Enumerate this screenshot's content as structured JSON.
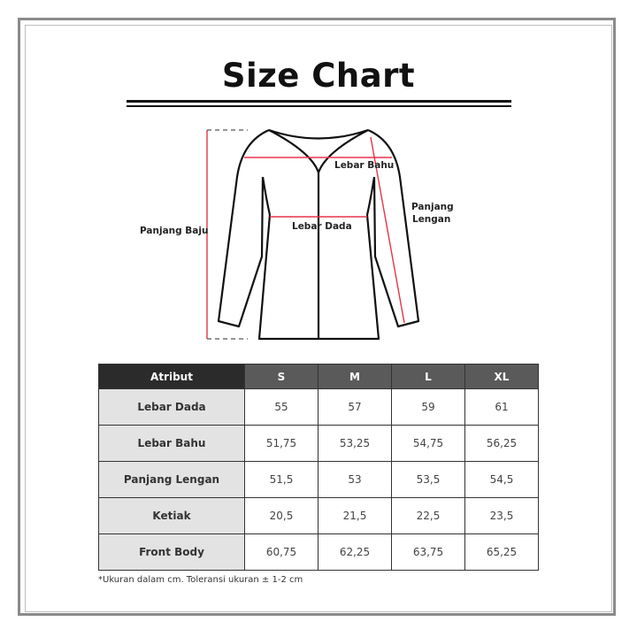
{
  "title": "Size Chart",
  "diagram": {
    "labels": {
      "lebar_bahu": "Lebar Bahu",
      "lebar_dada": "Lebar Dada",
      "panjang_baju": "Panjang Baju",
      "panjang_lengan_1": "Panjang",
      "panjang_lengan_2": "Lengan"
    },
    "measure_color": "#e8334a"
  },
  "table": {
    "headers": [
      "Atribut",
      "S",
      "M",
      "L",
      "XL"
    ],
    "rows": [
      {
        "attr": "Lebar Dada",
        "values": [
          "55",
          "57",
          "59",
          "61"
        ]
      },
      {
        "attr": "Lebar Bahu",
        "values": [
          "51,75",
          "53,25",
          "54,75",
          "56,25"
        ]
      },
      {
        "attr": "Panjang Lengan",
        "values": [
          "51,5",
          "53",
          "53,5",
          "54,5"
        ]
      },
      {
        "attr": "Ketiak",
        "values": [
          "20,5",
          "21,5",
          "22,5",
          "23,5"
        ]
      },
      {
        "attr": "Front Body",
        "values": [
          "60,75",
          "62,25",
          "63,75",
          "65,25"
        ]
      }
    ]
  },
  "note": "*Ukuran dalam cm. Toleransi ukuran ± 1-2 cm"
}
